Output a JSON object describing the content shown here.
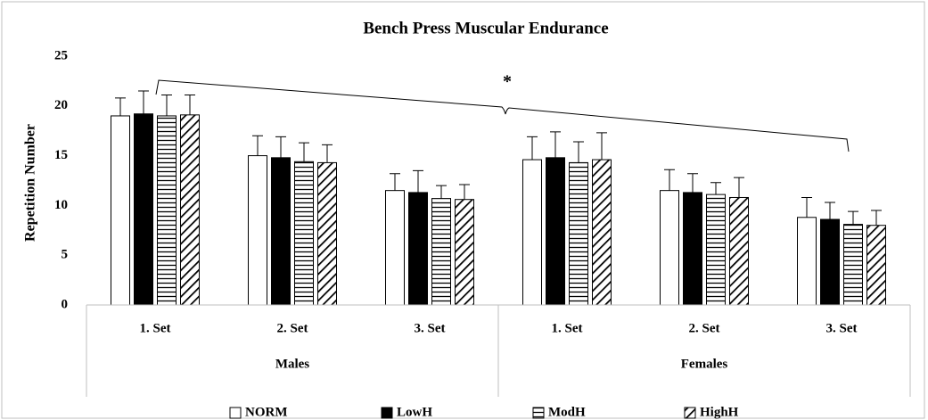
{
  "chart_data": {
    "type": "bar",
    "title": "Bench Press Muscular Endurance",
    "y_label": "Repetition Number",
    "categories": [
      "1. Set",
      "2. Set",
      "3. Set",
      "1. Set",
      "2. Set",
      "3. Set"
    ],
    "groups": [
      "Males",
      "Females"
    ],
    "series": [
      {
        "name": "NORM",
        "color": "#ffffff",
        "pattern": "none",
        "values": [
          19.0,
          15.0,
          11.5,
          14.6,
          11.5,
          8.8
        ],
        "errors": [
          1.8,
          2.0,
          1.7,
          2.3,
          2.1,
          2.0
        ]
      },
      {
        "name": "LowH",
        "color": "#000000",
        "pattern": "none",
        "values": [
          19.2,
          14.8,
          11.3,
          14.8,
          11.3,
          8.6
        ],
        "errors": [
          2.3,
          2.1,
          2.2,
          2.6,
          1.9,
          1.7
        ]
      },
      {
        "name": "ModH",
        "color": "#ffffff",
        "pattern": "horizontal",
        "values": [
          19.0,
          14.4,
          10.7,
          14.3,
          11.1,
          8.1
        ],
        "errors": [
          2.1,
          1.9,
          1.3,
          2.1,
          1.2,
          1.3
        ]
      },
      {
        "name": "HighH",
        "color": "#ffffff",
        "pattern": "diagonal",
        "values": [
          19.1,
          14.3,
          10.6,
          14.6,
          10.8,
          8.0
        ],
        "errors": [
          2.0,
          1.8,
          1.5,
          2.7,
          2.0,
          1.5
        ]
      }
    ],
    "annotation": "*",
    "ylim": [
      0,
      25
    ],
    "yticks": [
      0,
      5,
      10,
      15,
      20,
      25
    ],
    "grid": false,
    "legend": "bottom"
  }
}
